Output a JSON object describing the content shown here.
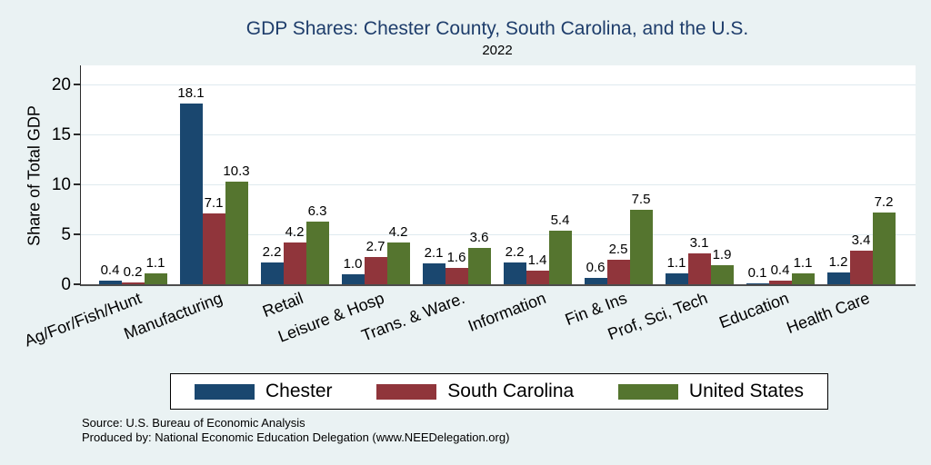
{
  "chart_data": {
    "type": "bar",
    "title": "GDP Shares: Chester County, South Carolina, and the U.S.",
    "subtitle": "2022",
    "ylabel": "Share of Total GDP",
    "xlabel": "",
    "ylim": [
      0,
      21.9
    ],
    "yticks": [
      0,
      5,
      10,
      15,
      20
    ],
    "grid": true,
    "legend_position": "bottom",
    "categories": [
      "Ag/For/Fish/Hunt",
      "Manufacturing",
      "Retail",
      "Leisure & Hosp",
      "Trans. & Ware.",
      "Information",
      "Fin & Ins",
      "Prof, Sci, Tech",
      "Education",
      "Health Care"
    ],
    "series": [
      {
        "name": "Chester",
        "color": "#1A476F",
        "values": [
          0.4,
          18.1,
          2.2,
          1.0,
          2.1,
          2.2,
          0.6,
          1.1,
          0.1,
          1.2
        ]
      },
      {
        "name": "South Carolina",
        "color": "#90353B",
        "values": [
          0.2,
          7.1,
          4.2,
          2.7,
          1.6,
          1.4,
          2.5,
          3.1,
          0.4,
          3.4
        ]
      },
      {
        "name": "United States",
        "color": "#55752F",
        "values": [
          1.1,
          10.3,
          6.3,
          4.2,
          3.6,
          5.4,
          7.5,
          1.9,
          1.1,
          7.2
        ]
      }
    ]
  },
  "footer": {
    "source": "Source: U.S. Bureau of Economic Analysis",
    "produced": "Produced by: National Economic Education Delegation (www.NEEDelegation.org)"
  }
}
